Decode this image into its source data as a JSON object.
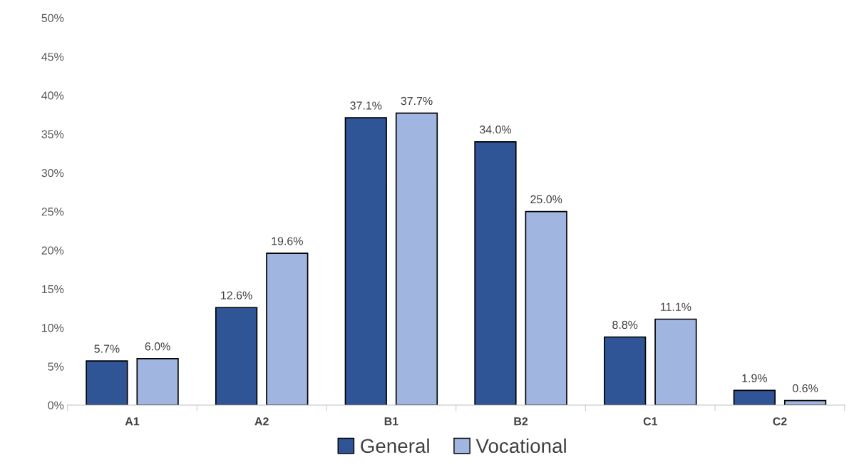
{
  "chart_data": {
    "type": "bar",
    "categories": [
      "A1",
      "A2",
      "B1",
      "B2",
      "C1",
      "C2"
    ],
    "series": [
      {
        "name": "General",
        "color": "#2f5597",
        "values": [
          5.7,
          12.6,
          37.1,
          34.0,
          8.8,
          1.9
        ],
        "value_labels": [
          "5.7%",
          "12.6%",
          "37.1%",
          "34.0%",
          "8.8%",
          "1.9%"
        ]
      },
      {
        "name": "Vocational",
        "color": "#a0b6e0",
        "values": [
          6.0,
          19.6,
          37.7,
          25.0,
          11.1,
          0.6
        ],
        "value_labels": [
          "6.0%",
          "19.6%",
          "37.7%",
          "25.0%",
          "11.1%",
          "0.6%"
        ]
      }
    ],
    "ylim": [
      0,
      50
    ],
    "yticks": [
      {
        "value": 0,
        "label": "0%"
      },
      {
        "value": 5,
        "label": "5%"
      },
      {
        "value": 10,
        "label": "10%"
      },
      {
        "value": 15,
        "label": "15%"
      },
      {
        "value": 20,
        "label": "20%"
      },
      {
        "value": 25,
        "label": "25%"
      },
      {
        "value": 30,
        "label": "30%"
      },
      {
        "value": 35,
        "label": "35%"
      },
      {
        "value": 40,
        "label": "40%"
      },
      {
        "value": 45,
        "label": "45%"
      },
      {
        "value": 50,
        "label": "50%"
      }
    ],
    "grid": false,
    "legend": "bottom"
  }
}
